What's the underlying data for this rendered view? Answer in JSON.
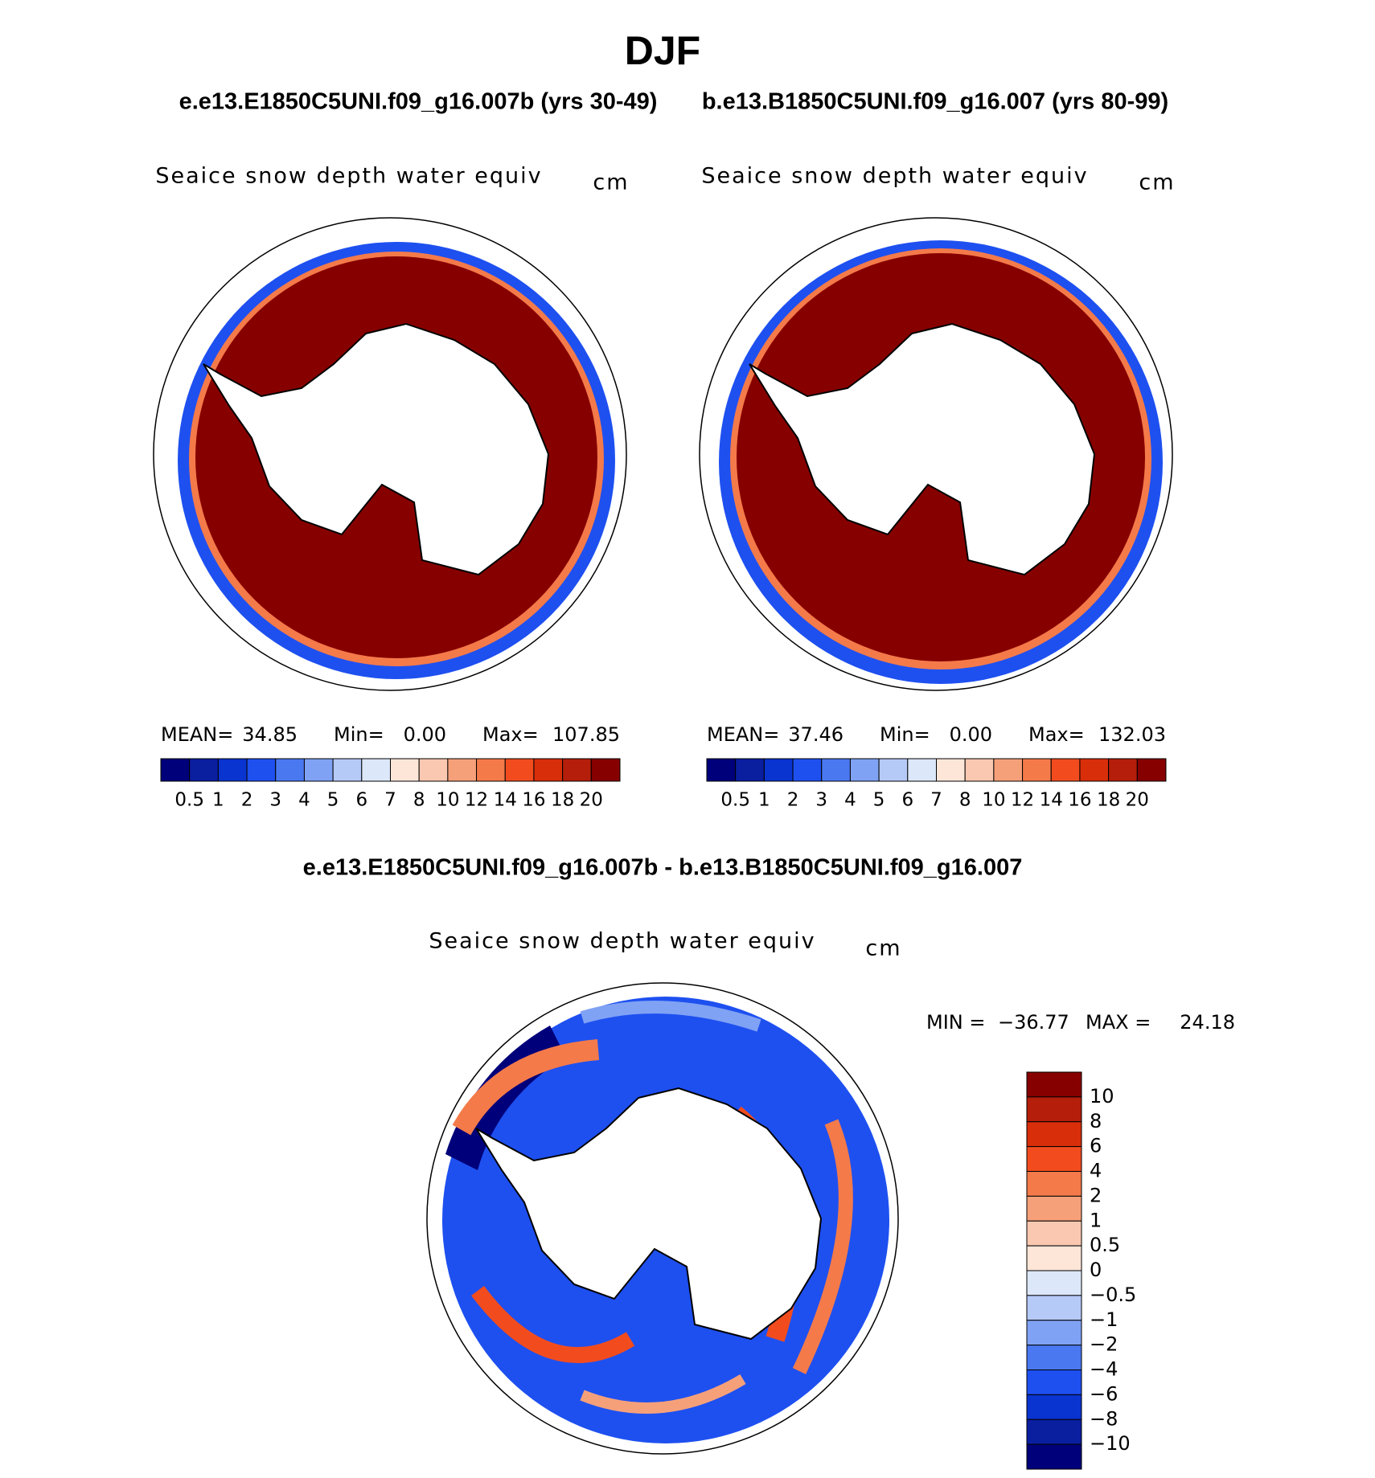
{
  "title": "DJF",
  "subtitle_left": "e.e13.E1850C5UNI.f09_g16.007b (yrs 30-49)",
  "subtitle_right": "b.e13.B1850C5UNI.f09_g16.007 (yrs 80-99)",
  "panels": [
    {
      "title": "Seaice snow depth water equiv",
      "units": "cm",
      "stats": [
        {
          "label": "MEAN=",
          "value": "34.85"
        },
        {
          "label": "Min=",
          "value": "0.00"
        },
        {
          "label": "Max=",
          "value": "107.85"
        }
      ]
    },
    {
      "title": "Seaice snow depth water equiv",
      "units": "cm",
      "stats": [
        {
          "label": "MEAN=",
          "value": "37.46"
        },
        {
          "label": "Min=",
          "value": "0.00"
        },
        {
          "label": "Max=",
          "value": "132.03"
        }
      ]
    }
  ],
  "colorbar": {
    "colors": [
      "#00007a",
      "#0a1ea0",
      "#0a34d0",
      "#1e50f0",
      "#4a78f0",
      "#80a2f4",
      "#b6caf8",
      "#dce8fa",
      "#fde6d8",
      "#fac8b0",
      "#f6a07a",
      "#f47a4a",
      "#f24c1e",
      "#d82e0a",
      "#b41e0a",
      "#870000"
    ],
    "labels": [
      "0.5",
      "1",
      "2",
      "3",
      "4",
      "5",
      "6",
      "7",
      "8",
      "10",
      "12",
      "14",
      "16",
      "18",
      "20"
    ]
  },
  "diff_title": "e.e13.E1850C5UNI.f09_g16.007b - b.e13.B1850C5UNI.f09_g16.007",
  "diff_panel": {
    "title": "Seaice snow depth water equiv",
    "units": "cm",
    "min_label": "MIN =",
    "min": "−36.77",
    "max_label": "MAX =",
    "max": "24.18"
  },
  "diff_colorbar": {
    "colors": [
      "#870000",
      "#b41e0a",
      "#d82e0a",
      "#f24c1e",
      "#f47a4a",
      "#f6a07a",
      "#fac8b0",
      "#fde6d8",
      "#dce8fa",
      "#b6caf8",
      "#80a2f4",
      "#4a78f0",
      "#1e50f0",
      "#0a34d0",
      "#0a1ea0",
      "#00007a"
    ],
    "labels": [
      "10",
      "8",
      "6",
      "4",
      "2",
      "1",
      "0.5",
      "0",
      "−0.5",
      "−1",
      "−2",
      "−4",
      "−6",
      "−8",
      "−10"
    ]
  }
}
